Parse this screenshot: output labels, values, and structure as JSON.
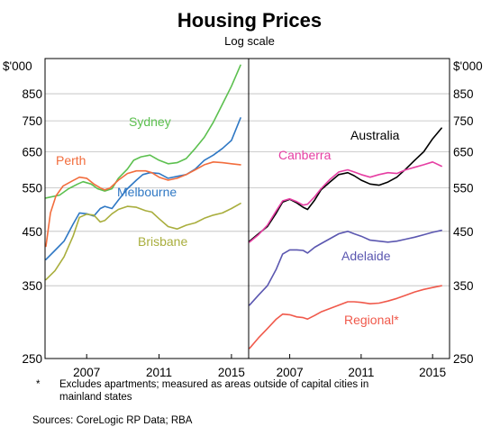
{
  "chart_data": {
    "type": "line",
    "title": "Housing Prices",
    "subtitle": "Log scale",
    "unit_label": "$'000",
    "y_scale": "log",
    "ylim": [
      250,
      1000
    ],
    "yticks": [
      250,
      350,
      450,
      550,
      650,
      750,
      850
    ],
    "xlim": [
      2004.7,
      2015.95
    ],
    "xticks": [
      2007,
      2011,
      2015
    ],
    "grid": true,
    "panels": [
      {
        "series": [
          {
            "name": "Sydney",
            "color": "#5cc04f",
            "points": [
              [
                2004.75,
                525
              ],
              [
                2005.5,
                532
              ],
              [
                2006,
                548
              ],
              [
                2006.5,
                560
              ],
              [
                2006.8,
                566
              ],
              [
                2007.25,
                560
              ],
              [
                2007.6,
                548
              ],
              [
                2008.0,
                542
              ],
              [
                2008.4,
                548
              ],
              [
                2008.75,
                575
              ],
              [
                2009.25,
                600
              ],
              [
                2009.6,
                625
              ],
              [
                2010.0,
                635
              ],
              [
                2010.5,
                640
              ],
              [
                2011.0,
                625
              ],
              [
                2011.5,
                615
              ],
              [
                2012.0,
                618
              ],
              [
                2012.5,
                630
              ],
              [
                2013.0,
                660
              ],
              [
                2013.5,
                695
              ],
              [
                2014.0,
                745
              ],
              [
                2014.5,
                810
              ],
              [
                2015.0,
                880
              ],
              [
                2015.5,
                970
              ]
            ]
          },
          {
            "name": "Melbourne",
            "color": "#2f78c4",
            "points": [
              [
                2004.75,
                395
              ],
              [
                2005.25,
                412
              ],
              [
                2005.75,
                430
              ],
              [
                2006.25,
                465
              ],
              [
                2006.6,
                490
              ],
              [
                2007.0,
                488
              ],
              [
                2007.4,
                483
              ],
              [
                2007.75,
                500
              ],
              [
                2008.0,
                505
              ],
              [
                2008.4,
                500
              ],
              [
                2008.75,
                520
              ],
              [
                2009.25,
                548
              ],
              [
                2009.75,
                570
              ],
              [
                2010.1,
                585
              ],
              [
                2010.5,
                590
              ],
              [
                2011.0,
                588
              ],
              [
                2011.5,
                575
              ],
              [
                2012.0,
                580
              ],
              [
                2012.5,
                585
              ],
              [
                2013.0,
                600
              ],
              [
                2013.5,
                625
              ],
              [
                2014.0,
                640
              ],
              [
                2014.5,
                660
              ],
              [
                2015.0,
                685
              ],
              [
                2015.5,
                760
              ]
            ]
          },
          {
            "name": "Perth",
            "color": "#f26d3d",
            "points": [
              [
                2004.75,
                420
              ],
              [
                2005.0,
                490
              ],
              [
                2005.3,
                530
              ],
              [
                2005.7,
                555
              ],
              [
                2006.2,
                568
              ],
              [
                2006.6,
                578
              ],
              [
                2007.0,
                575
              ],
              [
                2007.4,
                560
              ],
              [
                2007.75,
                550
              ],
              [
                2008.0,
                545
              ],
              [
                2008.3,
                550
              ],
              [
                2008.75,
                570
              ],
              [
                2009.25,
                588
              ],
              [
                2009.75,
                595
              ],
              [
                2010.25,
                595
              ],
              [
                2010.6,
                590
              ],
              [
                2011.0,
                578
              ],
              [
                2011.5,
                570
              ],
              [
                2012.0,
                575
              ],
              [
                2012.5,
                585
              ],
              [
                2013.0,
                598
              ],
              [
                2013.5,
                612
              ],
              [
                2014.0,
                620
              ],
              [
                2014.5,
                618
              ],
              [
                2015.0,
                615
              ],
              [
                2015.5,
                612
              ]
            ]
          },
          {
            "name": "Brisbane",
            "color": "#a9ae3d",
            "points": [
              [
                2004.75,
                360
              ],
              [
                2005.25,
                375
              ],
              [
                2005.75,
                400
              ],
              [
                2006.25,
                440
              ],
              [
                2006.6,
                480
              ],
              [
                2007.0,
                487
              ],
              [
                2007.4,
                485
              ],
              [
                2007.75,
                470
              ],
              [
                2008.0,
                473
              ],
              [
                2008.4,
                488
              ],
              [
                2008.75,
                498
              ],
              [
                2009.25,
                505
              ],
              [
                2009.75,
                503
              ],
              [
                2010.25,
                495
              ],
              [
                2010.6,
                492
              ],
              [
                2011.0,
                477
              ],
              [
                2011.5,
                460
              ],
              [
                2012.0,
                455
              ],
              [
                2012.5,
                463
              ],
              [
                2013.0,
                468
              ],
              [
                2013.5,
                478
              ],
              [
                2014.0,
                485
              ],
              [
                2014.5,
                490
              ],
              [
                2015.0,
                500
              ],
              [
                2015.5,
                512
              ]
            ]
          }
        ]
      },
      {
        "series": [
          {
            "name": "Australia",
            "color": "#000000",
            "points": [
              [
                2004.75,
                430
              ],
              [
                2005.25,
                445
              ],
              [
                2005.75,
                460
              ],
              [
                2006.25,
                490
              ],
              [
                2006.6,
                515
              ],
              [
                2007.0,
                522
              ],
              [
                2007.4,
                513
              ],
              [
                2007.75,
                503
              ],
              [
                2008.0,
                498
              ],
              [
                2008.4,
                520
              ],
              [
                2008.75,
                545
              ],
              [
                2009.25,
                565
              ],
              [
                2009.75,
                585
              ],
              [
                2010.25,
                590
              ],
              [
                2010.6,
                582
              ],
              [
                2011.0,
                570
              ],
              [
                2011.5,
                560
              ],
              [
                2012.0,
                557
              ],
              [
                2012.5,
                565
              ],
              [
                2013.0,
                578
              ],
              [
                2013.5,
                600
              ],
              [
                2014.0,
                625
              ],
              [
                2014.5,
                650
              ],
              [
                2015.0,
                690
              ],
              [
                2015.5,
                725
              ]
            ]
          },
          {
            "name": "Canberra",
            "color": "#e63fa3",
            "points": [
              [
                2004.75,
                428
              ],
              [
                2005.25,
                443
              ],
              [
                2005.75,
                463
              ],
              [
                2006.25,
                495
              ],
              [
                2006.6,
                518
              ],
              [
                2007.0,
                523
              ],
              [
                2007.4,
                516
              ],
              [
                2007.75,
                508
              ],
              [
                2008.0,
                510
              ],
              [
                2008.4,
                528
              ],
              [
                2008.75,
                548
              ],
              [
                2009.25,
                572
              ],
              [
                2009.75,
                592
              ],
              [
                2010.25,
                598
              ],
              [
                2010.6,
                592
              ],
              [
                2011.0,
                585
              ],
              [
                2011.5,
                578
              ],
              [
                2012.0,
                585
              ],
              [
                2012.5,
                590
              ],
              [
                2013.0,
                588
              ],
              [
                2013.5,
                598
              ],
              [
                2014.0,
                605
              ],
              [
                2014.5,
                612
              ],
              [
                2015.0,
                620
              ],
              [
                2015.5,
                608
              ]
            ]
          },
          {
            "name": "Adelaide",
            "color": "#5b57b0",
            "points": [
              [
                2004.75,
                320
              ],
              [
                2005.25,
                335
              ],
              [
                2005.75,
                350
              ],
              [
                2006.25,
                378
              ],
              [
                2006.6,
                405
              ],
              [
                2007.0,
                413
              ],
              [
                2007.4,
                413
              ],
              [
                2007.75,
                412
              ],
              [
                2008.0,
                407
              ],
              [
                2008.4,
                418
              ],
              [
                2008.75,
                425
              ],
              [
                2009.25,
                435
              ],
              [
                2009.75,
                445
              ],
              [
                2010.25,
                450
              ],
              [
                2010.6,
                445
              ],
              [
                2011.0,
                440
              ],
              [
                2011.5,
                432
              ],
              [
                2012.0,
                430
              ],
              [
                2012.5,
                428
              ],
              [
                2013.0,
                430
              ],
              [
                2013.5,
                434
              ],
              [
                2014.0,
                438
              ],
              [
                2014.5,
                443
              ],
              [
                2015.0,
                448
              ],
              [
                2015.5,
                452
              ]
            ]
          },
          {
            "name": "Regional*",
            "color": "#f0594b",
            "points": [
              [
                2004.75,
                262
              ],
              [
                2005.25,
                275
              ],
              [
                2005.75,
                287
              ],
              [
                2006.25,
                300
              ],
              [
                2006.6,
                307
              ],
              [
                2007.0,
                306
              ],
              [
                2007.4,
                303
              ],
              [
                2007.75,
                302
              ],
              [
                2008.0,
                300
              ],
              [
                2008.4,
                305
              ],
              [
                2008.75,
                310
              ],
              [
                2009.25,
                315
              ],
              [
                2009.75,
                320
              ],
              [
                2010.25,
                325
              ],
              [
                2010.6,
                325
              ],
              [
                2011.0,
                324
              ],
              [
                2011.5,
                322
              ],
              [
                2012.0,
                323
              ],
              [
                2012.5,
                326
              ],
              [
                2013.0,
                330
              ],
              [
                2013.5,
                335
              ],
              [
                2014.0,
                340
              ],
              [
                2014.5,
                344
              ],
              [
                2015.0,
                347
              ],
              [
                2015.5,
                350
              ]
            ]
          }
        ]
      }
    ],
    "footnote_marker": "*",
    "footnote": "Excludes apartments; measured as areas outside of capital cities in mainland states",
    "sources": "Sources:   CoreLogic RP Data; RBA"
  }
}
